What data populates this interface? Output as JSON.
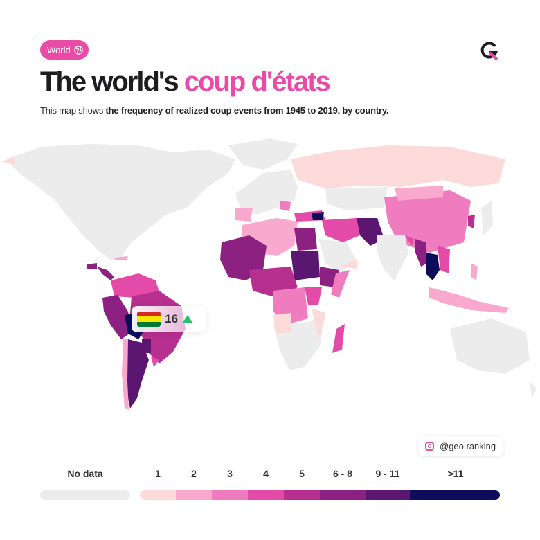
{
  "badge": {
    "label": "World"
  },
  "title": {
    "main": "The world's",
    "accent": "coup d'états"
  },
  "subtitle": {
    "prefix": "This map shows ",
    "bold": "the frequency of realized coup events from 1945 to 2019, by country."
  },
  "callout": {
    "value": "16"
  },
  "social": {
    "handle": "@geo.ranking"
  },
  "legend": {
    "no_data": {
      "label": "No data",
      "color": "#ececec"
    },
    "bins": [
      {
        "label": "1",
        "color": "#fddada"
      },
      {
        "label": "2",
        "color": "#f8a9cd"
      },
      {
        "label": "3",
        "color": "#f07cc0"
      },
      {
        "label": "4",
        "color": "#e44ba8"
      },
      {
        "label": "5",
        "color": "#b7308f"
      },
      {
        "label": "6 - 8",
        "color": "#8c2182"
      },
      {
        "label": "9 - 11",
        "color": "#5a1670"
      },
      {
        "label": ">11",
        "color": "#0d0d5c"
      }
    ]
  },
  "colors": {
    "accent": "#e84ca6",
    "land": "#ececec"
  }
}
